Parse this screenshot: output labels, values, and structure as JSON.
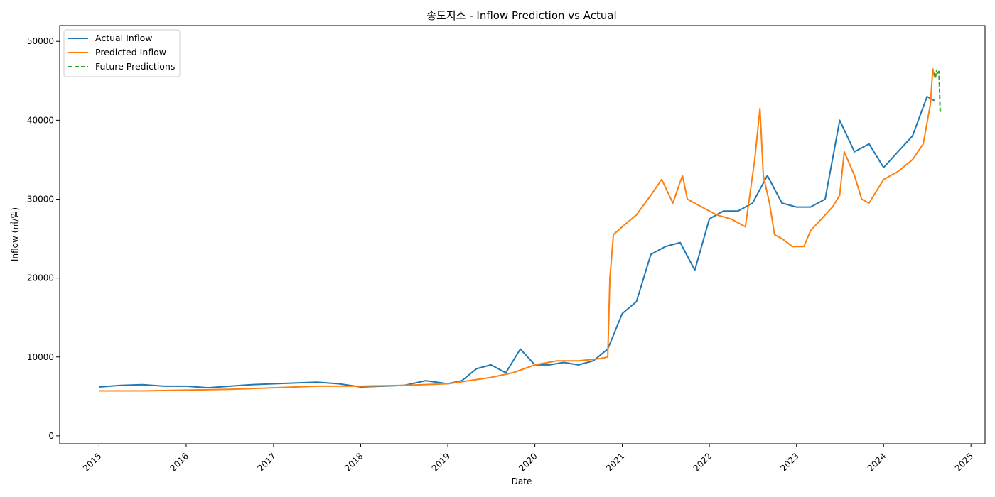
{
  "chart_data": {
    "type": "line",
    "title": "송도지소 - Inflow Prediction vs Actual",
    "xlabel": "Date",
    "ylabel": "Inflow (㎥/일)",
    "xlim": [
      "2014-07-20",
      "2025-03-01"
    ],
    "ylim": [
      -1000,
      52000
    ],
    "x_ticks": [
      "2015",
      "2016",
      "2017",
      "2018",
      "2019",
      "2020",
      "2021",
      "2022",
      "2023",
      "2024",
      "2025"
    ],
    "y_ticks": [
      0,
      10000,
      20000,
      30000,
      40000,
      50000
    ],
    "legend_position": "top-left",
    "grid": false,
    "series": [
      {
        "name": "Actual Inflow",
        "color": "#1f77b4",
        "style": "solid",
        "x": [
          "2015-01-01",
          "2015-04-01",
          "2015-07-01",
          "2015-10-01",
          "2016-01-01",
          "2016-04-01",
          "2016-07-01",
          "2016-10-01",
          "2017-01-01",
          "2017-04-01",
          "2017-07-01",
          "2017-10-01",
          "2018-01-01",
          "2018-04-01",
          "2018-07-01",
          "2018-10-01",
          "2019-01-01",
          "2019-03-01",
          "2019-05-01",
          "2019-07-01",
          "2019-09-01",
          "2019-11-01",
          "2020-01-01",
          "2020-03-01",
          "2020-05-01",
          "2020-07-01",
          "2020-09-01",
          "2020-11-01",
          "2021-01-01",
          "2021-03-01",
          "2021-05-01",
          "2021-07-01",
          "2021-09-01",
          "2021-11-01",
          "2022-01-01",
          "2022-03-01",
          "2022-05-01",
          "2022-07-01",
          "2022-09-01",
          "2022-11-01",
          "2023-01-01",
          "2023-03-01",
          "2023-05-01",
          "2023-07-01",
          "2023-09-01",
          "2023-11-01",
          "2024-01-01",
          "2024-03-01",
          "2024-05-01",
          "2024-07-01",
          "2024-08-01"
        ],
        "values": [
          6200,
          6400,
          6500,
          6300,
          6300,
          6100,
          6300,
          6500,
          6600,
          6700,
          6800,
          6600,
          6200,
          6300,
          6400,
          7000,
          6600,
          7000,
          8500,
          9000,
          8000,
          11000,
          9000,
          9000,
          9300,
          9000,
          9500,
          11000,
          15500,
          17000,
          23000,
          24000,
          24500,
          21000,
          27500,
          28500,
          28500,
          29500,
          33000,
          29500,
          29000,
          29000,
          30000,
          40000,
          36000,
          37000,
          34000,
          36000,
          38000,
          43000,
          42500
        ]
      },
      {
        "name": "Predicted Inflow",
        "color": "#ff7f0e",
        "style": "solid",
        "x": [
          "2015-01-01",
          "2015-07-01",
          "2016-01-01",
          "2016-07-01",
          "2017-01-01",
          "2017-07-01",
          "2018-01-01",
          "2018-07-01",
          "2019-01-01",
          "2019-07-01",
          "2019-10-01",
          "2020-01-01",
          "2020-04-01",
          "2020-07-01",
          "2020-10-01",
          "2020-11-01",
          "2020-11-10",
          "2020-11-25",
          "2021-01-01",
          "2021-03-01",
          "2021-05-01",
          "2021-06-15",
          "2021-08-01",
          "2021-09-10",
          "2021-10-01",
          "2021-12-01",
          "2022-02-01",
          "2022-04-01",
          "2022-06-01",
          "2022-07-10",
          "2022-08-01",
          "2022-08-15",
          "2022-09-10",
          "2022-10-01",
          "2022-11-01",
          "2022-12-15",
          "2023-02-01",
          "2023-03-01",
          "2023-05-01",
          "2023-06-01",
          "2023-07-01",
          "2023-07-20",
          "2023-09-01",
          "2023-10-01",
          "2023-11-01",
          "2024-01-01",
          "2024-03-01",
          "2024-05-01",
          "2024-06-15",
          "2024-07-15",
          "2024-07-25",
          "2024-08-01"
        ],
        "values": [
          5700,
          5700,
          5800,
          5900,
          6100,
          6300,
          6300,
          6400,
          6600,
          7400,
          8000,
          9000,
          9500,
          9500,
          9800,
          10000,
          20000,
          25500,
          26500,
          28000,
          30500,
          32500,
          29500,
          33000,
          30000,
          29000,
          28000,
          27500,
          26500,
          35000,
          41500,
          33000,
          29500,
          25500,
          25000,
          24000,
          24000,
          26000,
          28000,
          29000,
          30500,
          36000,
          33000,
          30000,
          29500,
          32500,
          33500,
          35000,
          37000,
          42000,
          46500,
          45500
        ]
      },
      {
        "name": "Future Predictions",
        "color": "#2ca02c",
        "style": "dashed",
        "x": [
          "2024-08-01",
          "2024-08-05",
          "2024-08-10",
          "2024-08-15",
          "2024-08-20",
          "2024-08-25",
          "2024-08-31"
        ],
        "values": [
          46000,
          45300,
          46300,
          45800,
          46200,
          41000,
          41200
        ]
      }
    ]
  }
}
